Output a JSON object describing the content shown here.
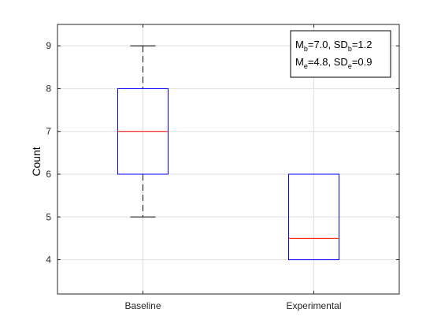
{
  "chart_data": {
    "type": "box",
    "ylabel": "Count",
    "ylim": [
      3.2,
      9.5
    ],
    "yticks": [
      4,
      5,
      6,
      7,
      8,
      9
    ],
    "grid": true,
    "categories": [
      "Baseline",
      "Experimental"
    ],
    "boxes": [
      {
        "label": "Baseline",
        "whisker_low": 5,
        "q1": 6,
        "median": 7,
        "q3": 8,
        "whisker_high": 9
      },
      {
        "label": "Experimental",
        "whisker_low": 4,
        "q1": 4,
        "median": 4.5,
        "q3": 6,
        "whisker_high": 6
      }
    ],
    "annotation": {
      "position": "top-right",
      "line1": {
        "m_base": "M",
        "m_sub": "b",
        "m_value": "=7.0, ",
        "sd_base": "SD",
        "sd_sub": "b",
        "sd_value": "=1.2"
      },
      "line2": {
        "m_base": "M",
        "m_sub": "e",
        "m_value": "=4.8, ",
        "sd_base": "SD",
        "sd_sub": "e",
        "sd_value": "=0.9"
      }
    },
    "colors": {
      "box": "#0000ff",
      "median": "#ff0000",
      "whisker": "#000000",
      "grid": "#dedede",
      "axis": "#262626"
    }
  }
}
